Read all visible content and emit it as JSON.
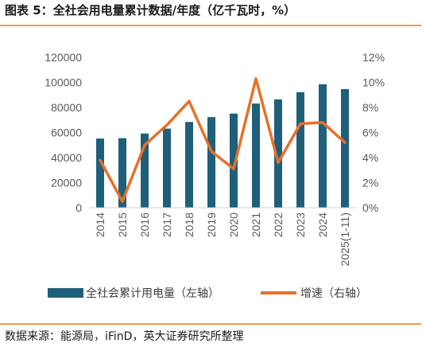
{
  "title": "图表 5：全社会用电量累计数据/年度（亿千瓦时，%）",
  "source": "数据来源：能源局，iFinD，英大证券研究所整理",
  "colors": {
    "bar": "#1f5f7a",
    "line": "#e8702a",
    "rule": "#e8a33c"
  },
  "chart_data": {
    "type": "bar",
    "categories": [
      "2014",
      "2015",
      "2016",
      "2017",
      "2018",
      "2019",
      "2020",
      "2021",
      "2022",
      "2023",
      "2024",
      "2025(1-11)"
    ],
    "series": [
      {
        "name": "全社会累计用电量（左轴）",
        "type": "bar",
        "axis": "left",
        "values": [
          55200,
          55500,
          59200,
          63100,
          68400,
          72300,
          75100,
          83100,
          86400,
          92200,
          98500,
          94600
        ]
      },
      {
        "name": "增速（右轴）",
        "type": "line",
        "axis": "right",
        "values": [
          3.8,
          0.5,
          5.0,
          6.6,
          8.5,
          4.5,
          3.1,
          10.3,
          3.6,
          6.7,
          6.8,
          5.2
        ]
      }
    ],
    "yleft": {
      "lim": [
        0,
        120000
      ],
      "ticks": [
        "0",
        "20000",
        "40000",
        "60000",
        "80000",
        "100000",
        "120000"
      ]
    },
    "yright": {
      "lim": [
        0,
        12
      ],
      "ticks": [
        "0%",
        "2%",
        "4%",
        "6%",
        "8%",
        "10%",
        "12%"
      ]
    },
    "grid": false,
    "legend": "bottom"
  }
}
